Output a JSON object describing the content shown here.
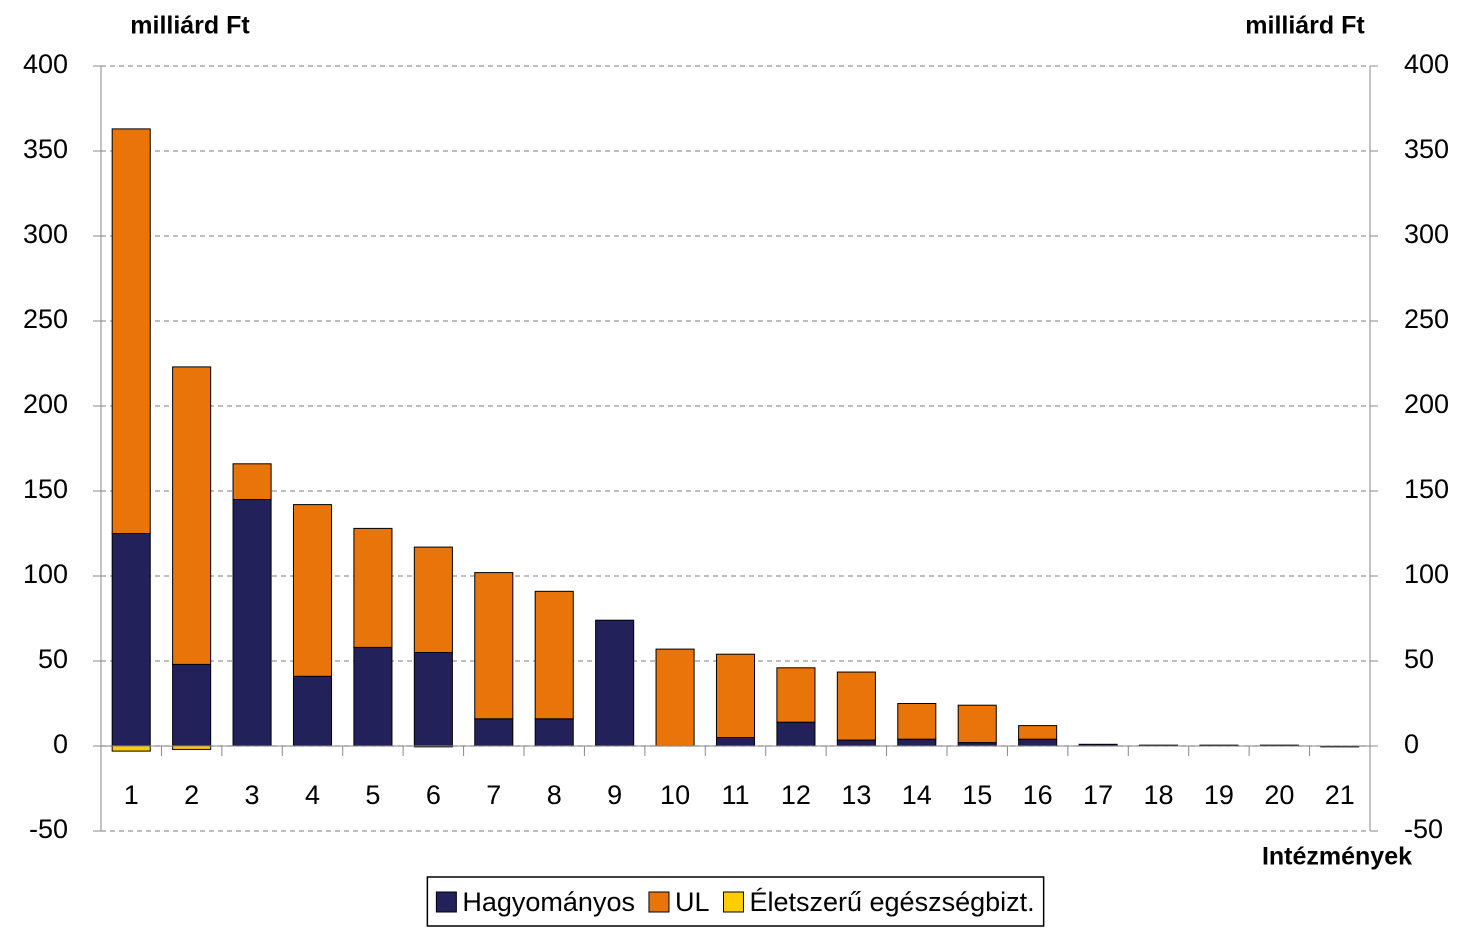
{
  "chart_data": {
    "type": "stacked_bar",
    "y_label": "milliárd Ft",
    "y2_label": "milliárd Ft",
    "x_label": "Intézmények",
    "categories": [
      "1",
      "2",
      "3",
      "4",
      "5",
      "6",
      "7",
      "8",
      "9",
      "10",
      "11",
      "12",
      "13",
      "14",
      "15",
      "16",
      "17",
      "18",
      "19",
      "20",
      "21"
    ],
    "series": [
      {
        "name": "Hagyományos",
        "color": "#23215a",
        "values": [
          125,
          48,
          145,
          41,
          58,
          55,
          16,
          16,
          74,
          0,
          5,
          14,
          3.5,
          4,
          2,
          4,
          1,
          0.5,
          0.5,
          0.5,
          0
        ]
      },
      {
        "name": "UL",
        "color": "#e8740a",
        "values": [
          238,
          175,
          21,
          101,
          70,
          62,
          86,
          75,
          0,
          57,
          49,
          32,
          40,
          21,
          22,
          8,
          0,
          0,
          0,
          0,
          0
        ]
      },
      {
        "name": "Életszerű egészségbizt.",
        "color": "#ffcc00",
        "values": [
          -3,
          -2,
          0,
          0,
          0,
          -0.5,
          0,
          0,
          0,
          0,
          0,
          0,
          0,
          0,
          0,
          0,
          0,
          0,
          0,
          0,
          -0.5
        ]
      }
    ],
    "ylim": [
      -50,
      400
    ],
    "yticks": [
      -50,
      0,
      50,
      100,
      150,
      200,
      250,
      300,
      350,
      400
    ],
    "y2lim": [
      -50,
      400
    ],
    "y2ticks": [
      -50,
      0,
      50,
      100,
      150,
      200,
      250,
      300,
      350,
      400
    ],
    "grid": true,
    "legend": "bottom"
  }
}
